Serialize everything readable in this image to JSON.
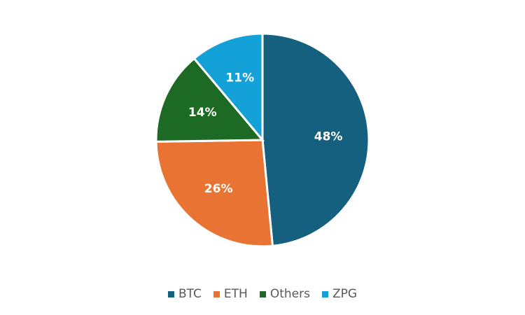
{
  "chart_data": {
    "type": "pie",
    "slices": [
      {
        "name": "BTC",
        "value": 48,
        "label": "48%",
        "color": "#16607f"
      },
      {
        "name": "ETH",
        "value": 26,
        "label": "26%",
        "color": "#e97332"
      },
      {
        "name": "Others",
        "value": 14,
        "label": "14%",
        "color": "#1c6a23"
      },
      {
        "name": "ZPG",
        "value": 11,
        "label": "11%",
        "color": "#13a1d8"
      }
    ],
    "start_angle_deg": 0,
    "direction": "clockwise",
    "legend_position": "bottom",
    "title": ""
  }
}
